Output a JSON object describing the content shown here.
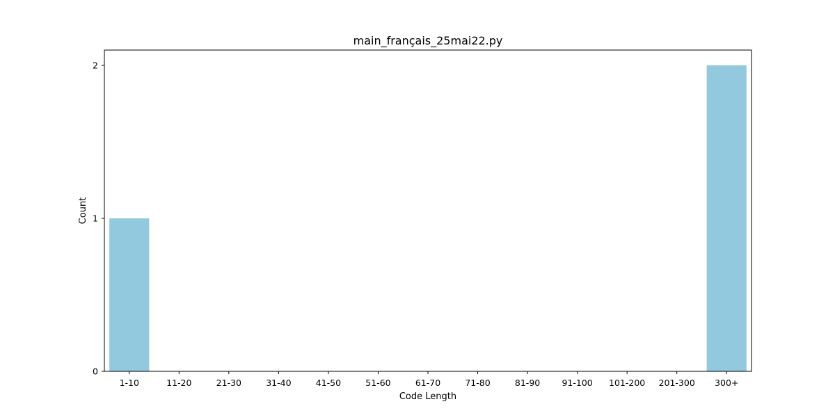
{
  "chart_data": {
    "type": "bar",
    "title": "main_français_25mai22.py",
    "xlabel": "Code Length",
    "ylabel": "Count",
    "categories": [
      "1-10",
      "11-20",
      "21-30",
      "31-40",
      "41-50",
      "51-60",
      "61-70",
      "71-80",
      "81-90",
      "91-100",
      "101-200",
      "201-300",
      "300+"
    ],
    "values": [
      1,
      0,
      0,
      0,
      0,
      0,
      0,
      0,
      0,
      0,
      0,
      0,
      2
    ],
    "ylim": [
      0,
      2.1
    ],
    "yticks": [
      0,
      1,
      2
    ],
    "grid": false,
    "bar_color": "#92c9de"
  }
}
